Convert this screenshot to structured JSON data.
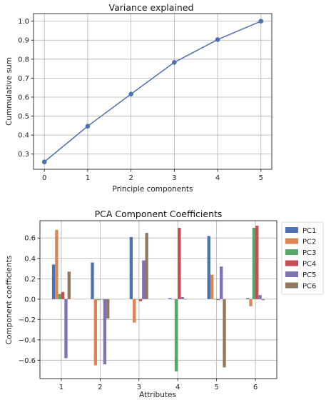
{
  "chart_data": [
    {
      "type": "line",
      "title": "Variance explained",
      "xlabel": "Principle components",
      "ylabel": "Cummulative sum",
      "x": [
        0,
        1,
        2,
        3,
        4,
        5
      ],
      "y": [
        0.259,
        0.447,
        0.616,
        0.783,
        0.903,
        1.0
      ],
      "xlim": [
        -0.25,
        5.25
      ],
      "ylim": [
        0.22,
        1.04
      ],
      "xticks": [
        0,
        1,
        2,
        3,
        4,
        5
      ],
      "yticks": [
        0.3,
        0.4,
        0.5,
        0.6,
        0.7,
        0.8,
        0.9,
        1.0
      ],
      "ytick_labels": [
        "0.3",
        "0.4",
        "0.5",
        "0.6",
        "0.7",
        "0.8",
        "0.9",
        "1.0"
      ],
      "grid": true,
      "color": "#4c72b0"
    },
    {
      "type": "bar",
      "title": "PCA Component Coefficients",
      "xlabel": "Attributes",
      "ylabel": "Component coefficients",
      "categories": [
        "1",
        "2",
        "3",
        "4",
        "5",
        "6"
      ],
      "ylim": [
        -0.78,
        0.77
      ],
      "yticks": [
        -0.6,
        -0.4,
        -0.2,
        0.0,
        0.2,
        0.4,
        0.6
      ],
      "ytick_labels": [
        "−0.6",
        "−0.4",
        "−0.2",
        "0.0",
        "0.2",
        "0.4",
        "0.6"
      ],
      "grid": true,
      "legend": "outside-right-top",
      "series": [
        {
          "name": "PC1",
          "color": "#4c72b0",
          "values": [
            0.34,
            0.36,
            0.61,
            0.01,
            0.62,
            0.01
          ]
        },
        {
          "name": "PC2",
          "color": "#dd8452",
          "values": [
            0.68,
            -0.65,
            -0.23,
            0.0,
            0.24,
            -0.07
          ]
        },
        {
          "name": "PC3",
          "color": "#55a868",
          "values": [
            0.05,
            -0.01,
            0.0,
            -0.71,
            0.0,
            0.7
          ]
        },
        {
          "name": "PC4",
          "color": "#c44e52",
          "values": [
            0.07,
            0.0,
            -0.02,
            0.7,
            -0.01,
            0.72
          ]
        },
        {
          "name": "PC5",
          "color": "#8172b3",
          "values": [
            -0.58,
            -0.64,
            0.38,
            0.02,
            0.32,
            0.04
          ]
        },
        {
          "name": "PC6",
          "color": "#937860",
          "values": [
            0.27,
            -0.19,
            0.65,
            0.0,
            -0.67,
            -0.01
          ]
        }
      ]
    }
  ]
}
